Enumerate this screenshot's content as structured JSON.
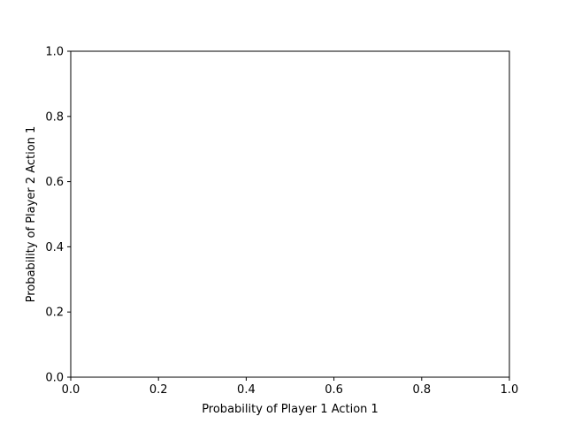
{
  "chart_data": {
    "type": "line",
    "title": "",
    "xlabel": "Probability of Player 1 Action 1",
    "ylabel": "Probability of Player 2 Action 1",
    "xlim": [
      0.0,
      1.0
    ],
    "ylim": [
      0.0,
      1.0
    ],
    "xticks": [
      0.0,
      0.2,
      0.4,
      0.6,
      0.8,
      1.0
    ],
    "yticks": [
      0.0,
      0.2,
      0.4,
      0.6,
      0.8,
      1.0
    ],
    "xtick_labels": [
      "0.0",
      "0.2",
      "0.4",
      "0.6",
      "0.8",
      "1.0"
    ],
    "ytick_labels": [
      "0.0",
      "0.2",
      "0.4",
      "0.6",
      "0.8",
      "1.0"
    ],
    "series": [],
    "grid": false,
    "legend": "none"
  }
}
